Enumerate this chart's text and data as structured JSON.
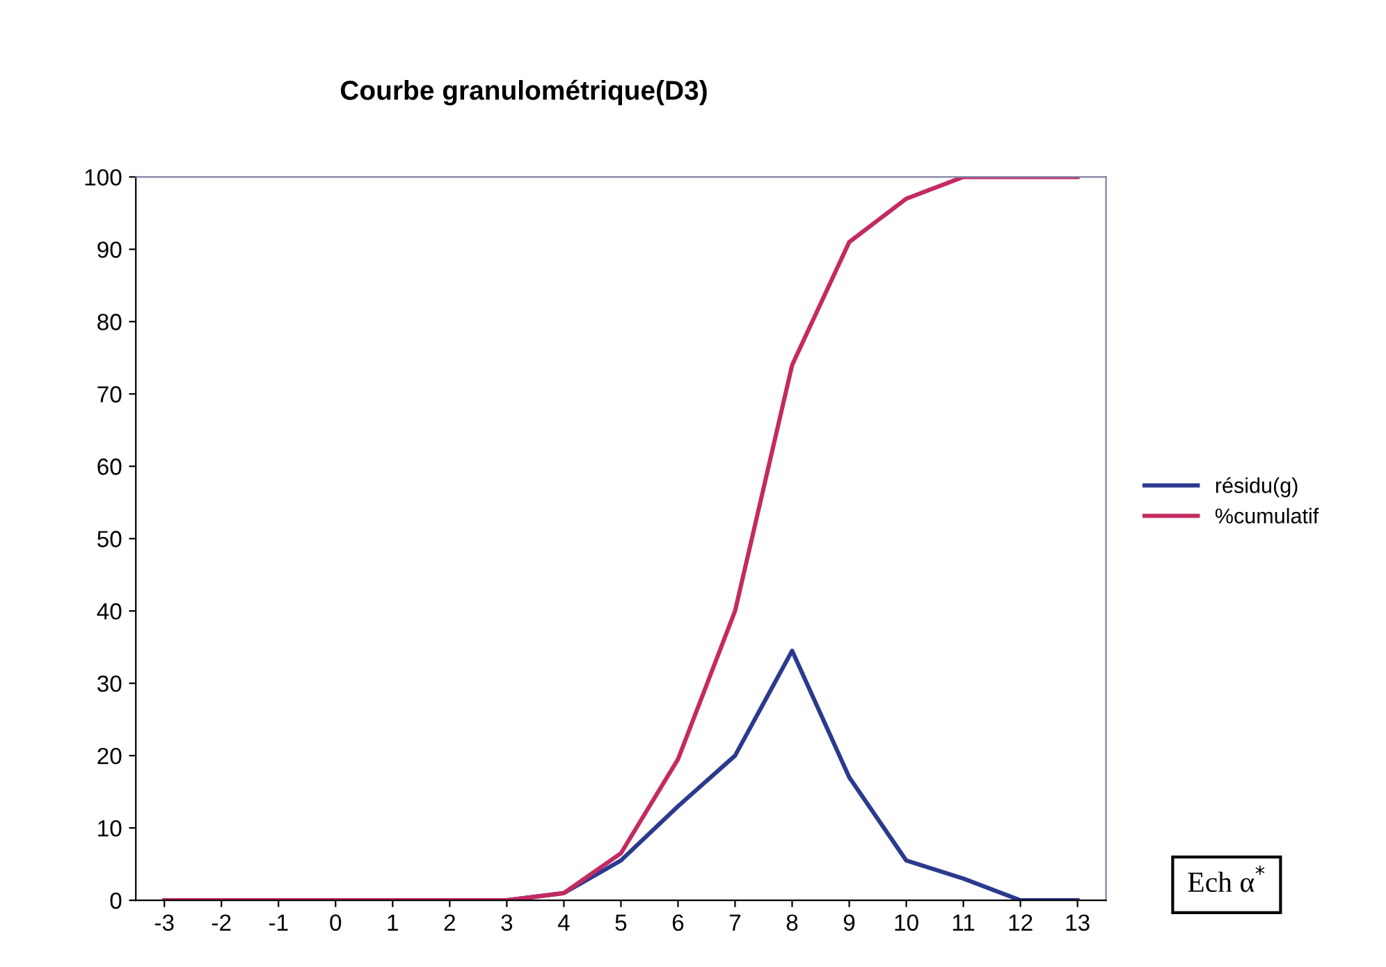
{
  "chart_data": {
    "type": "line",
    "title": "Courbe granulométrique(D3)",
    "categories": [
      "-3",
      "-2",
      "-1",
      "0",
      "1",
      "2",
      "3",
      "4",
      "5",
      "6",
      "7",
      "8",
      "9",
      "10",
      "11",
      "12",
      "13"
    ],
    "series": [
      {
        "name": "résidu(g)",
        "color": "#2b3a8f",
        "values": [
          null,
          null,
          null,
          null,
          null,
          null,
          0,
          1,
          5.5,
          13,
          20,
          34.5,
          17,
          5.5,
          3,
          0,
          0
        ]
      },
      {
        "name": "%cumulatif",
        "color": "#c42a62",
        "values": [
          0,
          0,
          0,
          0,
          0,
          0,
          0,
          1,
          6.5,
          19.5,
          40,
          74,
          91,
          97,
          100,
          100,
          100
        ]
      }
    ],
    "ylim": [
      0,
      100
    ],
    "yticks": [
      0,
      10,
      20,
      30,
      40,
      50,
      60,
      70,
      80,
      90,
      100
    ],
    "grid": false,
    "legend": "right",
    "marker": "none",
    "line_style": "solid",
    "annotations": [
      "Ech α$^{*}$"
    ]
  }
}
